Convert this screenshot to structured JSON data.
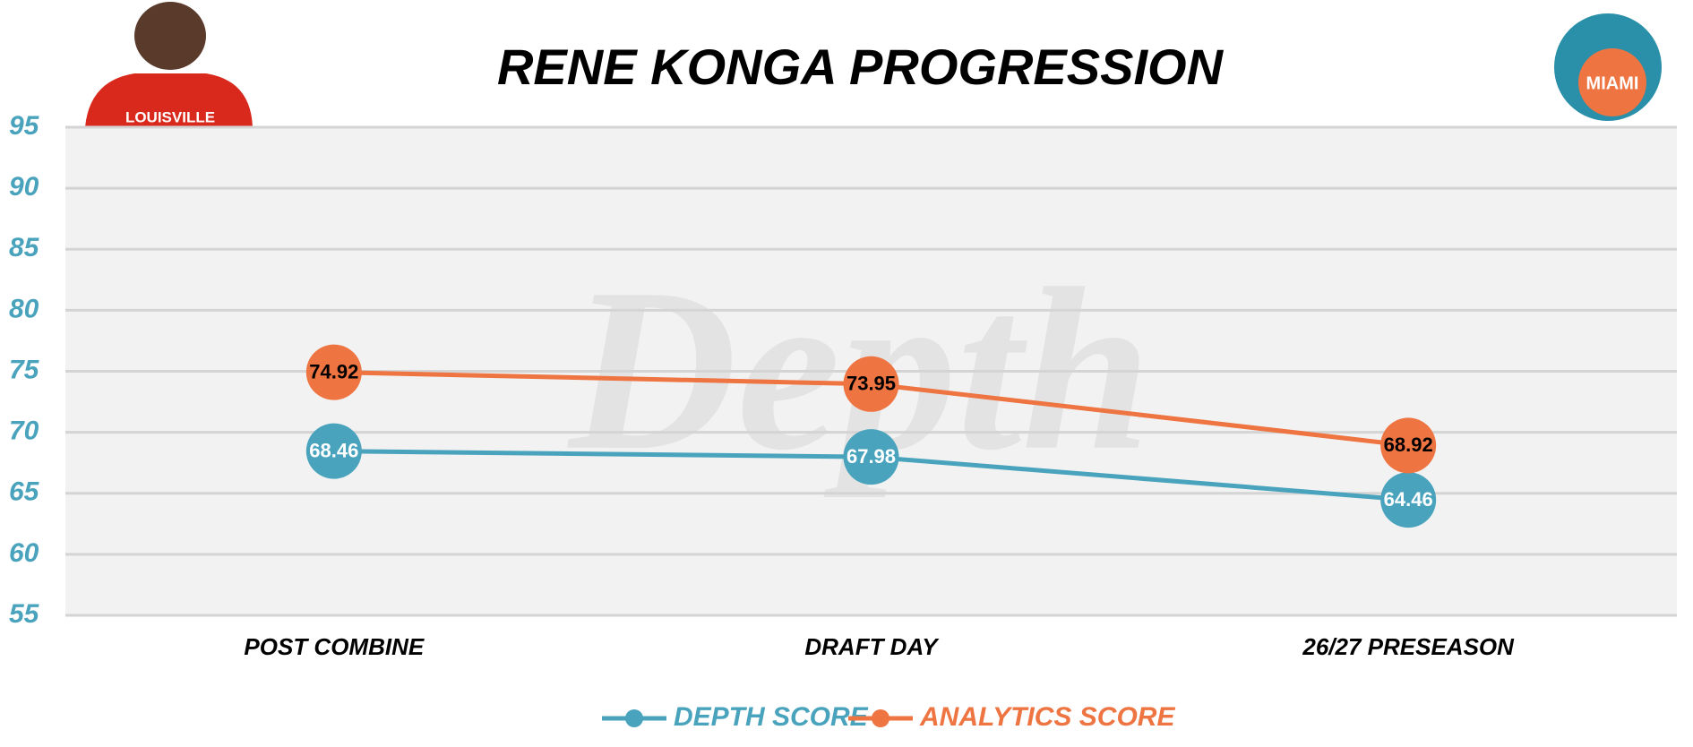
{
  "chart_data": {
    "type": "line",
    "title": "RENE KONGA PROGRESSION",
    "watermark": "Depth",
    "categories": [
      "POST COMBINE",
      "DRAFT DAY",
      "26/27 PRESEASON"
    ],
    "series": [
      {
        "name": "DEPTH SCORE",
        "color": "#4aa3bd",
        "values": [
          68.46,
          67.98,
          64.46
        ]
      },
      {
        "name": "ANALYTICS SCORE",
        "color": "#ee7441",
        "values": [
          74.92,
          73.95,
          68.92
        ]
      }
    ],
    "ylim": [
      55,
      95
    ],
    "yticks": [
      55,
      60,
      65,
      70,
      75,
      80,
      85,
      90,
      95
    ],
    "grid": true,
    "legend": "bottom"
  }
}
